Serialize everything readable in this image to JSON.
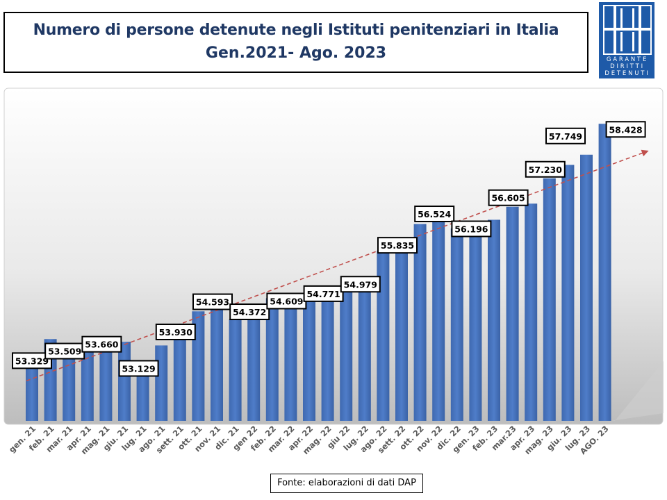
{
  "title": {
    "line1": "Numero di persone detenute negli Istituti penitenziari in Italia",
    "line2": "Gen.2021- Ago. 2023"
  },
  "logo": {
    "line1": "GARANTE",
    "line2": "DIRITTI",
    "line3": "DETENUTI"
  },
  "source": "Fonte: elaborazioni di dati DAP",
  "colors": {
    "bar": "#4472c4",
    "title": "#1f3864",
    "trend": "#c0504d",
    "logo": "#1e5aa8"
  },
  "chart_data": {
    "type": "bar",
    "categories": [
      "gen. 21",
      "feb. 21",
      "mar. 21",
      "apr. 21",
      "mag. 21",
      "giu. 21",
      "lug. 21",
      "ago. 21",
      "sett. 21",
      "ott. 21",
      "nov. 21",
      "dic. 21",
      "gen 22",
      "feb. 22",
      "mar. 22",
      "apr. 22",
      "mag. 22",
      "giu 22",
      "lug. 22",
      "ago. 22",
      "sett. 22",
      "ott. 22",
      "nov. 22",
      "dic. 22",
      "gen. 23",
      "feb. 23",
      "mar.23",
      "apr. 23",
      "mag. 23",
      "giu. 23",
      "lug. 23",
      "AGO. 23"
    ],
    "values": [
      53329,
      53697,
      53509,
      53565,
      53660,
      53637,
      53129,
      53557,
      53930,
      54307,
      54593,
      54134,
      54372,
      54595,
      54609,
      54595,
      54771,
      54841,
      54979,
      55637,
      55835,
      56225,
      56524,
      56127,
      56196,
      56319,
      56605,
      56674,
      57230,
      57525,
      57749,
      58428
    ],
    "data_labels": [
      {
        "index": 0,
        "text": "53.329"
      },
      {
        "index": 2,
        "text": "53.509"
      },
      {
        "index": 4,
        "text": "53.660"
      },
      {
        "index": 6,
        "text": "53.129"
      },
      {
        "index": 8,
        "text": "53.930"
      },
      {
        "index": 10,
        "text": "54.593"
      },
      {
        "index": 12,
        "text": "54.372"
      },
      {
        "index": 14,
        "text": "54.609"
      },
      {
        "index": 16,
        "text": "54.771"
      },
      {
        "index": 18,
        "text": "54.979"
      },
      {
        "index": 20,
        "text": "55.835"
      },
      {
        "index": 22,
        "text": "56.524"
      },
      {
        "index": 24,
        "text": "56.196"
      },
      {
        "index": 26,
        "text": "56.605"
      },
      {
        "index": 28,
        "text": "57.230"
      },
      {
        "index": 30,
        "text": "57.749"
      },
      {
        "index": 31,
        "text": "58.428"
      }
    ],
    "trendline": {
      "type": "linear",
      "style": "dashed",
      "arrow": true
    },
    "ylim": [
      51900,
      58600
    ],
    "grid": false,
    "legend": "none"
  }
}
